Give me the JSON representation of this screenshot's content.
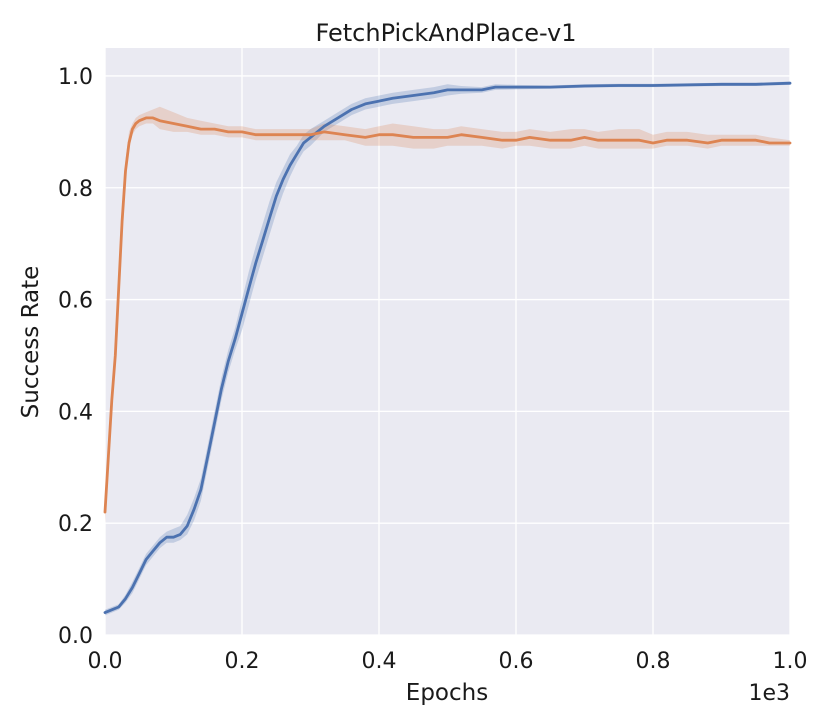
{
  "chart_data": {
    "type": "line",
    "title": "FetchPickAndPlace-v1",
    "xlabel": "Epochs",
    "ylabel": "Success Rate",
    "x_offset_label": "1e3",
    "xlim": [
      0.0,
      1.0
    ],
    "ylim": [
      0.0,
      1.05
    ],
    "xticks": [
      "0.0",
      "0.2",
      "0.4",
      "0.6",
      "0.8",
      "1.0"
    ],
    "yticks": [
      "0.0",
      "0.2",
      "0.4",
      "0.6",
      "0.8",
      "1.0"
    ],
    "grid": true,
    "legend": "none",
    "background": "#eaeaf2",
    "series": [
      {
        "color": "#4c72b0",
        "band_color": "#4c72b0",
        "x": [
          0.0,
          0.01,
          0.02,
          0.03,
          0.04,
          0.05,
          0.06,
          0.07,
          0.08,
          0.09,
          0.1,
          0.11,
          0.12,
          0.13,
          0.14,
          0.15,
          0.16,
          0.17,
          0.18,
          0.19,
          0.2,
          0.21,
          0.22,
          0.23,
          0.24,
          0.25,
          0.26,
          0.27,
          0.28,
          0.29,
          0.3,
          0.32,
          0.34,
          0.36,
          0.38,
          0.4,
          0.42,
          0.45,
          0.48,
          0.5,
          0.52,
          0.55,
          0.57,
          0.6,
          0.65,
          0.7,
          0.75,
          0.8,
          0.85,
          0.9,
          0.95,
          1.0
        ],
        "mean": [
          0.04,
          0.045,
          0.05,
          0.065,
          0.085,
          0.11,
          0.135,
          0.15,
          0.165,
          0.175,
          0.175,
          0.18,
          0.195,
          0.225,
          0.26,
          0.32,
          0.38,
          0.44,
          0.49,
          0.53,
          0.575,
          0.62,
          0.665,
          0.705,
          0.745,
          0.785,
          0.815,
          0.84,
          0.86,
          0.88,
          0.89,
          0.91,
          0.925,
          0.94,
          0.95,
          0.955,
          0.96,
          0.965,
          0.97,
          0.975,
          0.975,
          0.975,
          0.98,
          0.98,
          0.98,
          0.982,
          0.983,
          0.983,
          0.984,
          0.985,
          0.985,
          0.987
        ],
        "lower": [
          0.035,
          0.04,
          0.045,
          0.058,
          0.075,
          0.1,
          0.125,
          0.14,
          0.155,
          0.165,
          0.165,
          0.17,
          0.18,
          0.205,
          0.24,
          0.3,
          0.36,
          0.42,
          0.47,
          0.51,
          0.545,
          0.59,
          0.635,
          0.675,
          0.715,
          0.755,
          0.79,
          0.82,
          0.845,
          0.865,
          0.875,
          0.9,
          0.915,
          0.93,
          0.94,
          0.945,
          0.95,
          0.955,
          0.96,
          0.965,
          0.968,
          0.97,
          0.975,
          0.976,
          0.977,
          0.979,
          0.98,
          0.98,
          0.981,
          0.982,
          0.982,
          0.984
        ],
        "upper": [
          0.045,
          0.05,
          0.055,
          0.072,
          0.095,
          0.12,
          0.145,
          0.16,
          0.175,
          0.185,
          0.19,
          0.195,
          0.215,
          0.245,
          0.28,
          0.34,
          0.4,
          0.46,
          0.51,
          0.55,
          0.6,
          0.65,
          0.695,
          0.735,
          0.775,
          0.81,
          0.835,
          0.86,
          0.875,
          0.895,
          0.905,
          0.92,
          0.935,
          0.95,
          0.96,
          0.965,
          0.97,
          0.975,
          0.98,
          0.985,
          0.982,
          0.98,
          0.985,
          0.984,
          0.983,
          0.985,
          0.986,
          0.986,
          0.987,
          0.988,
          0.988,
          0.99
        ]
      },
      {
        "color": "#dd8452",
        "band_color": "#dd8452",
        "x": [
          0.0,
          0.005,
          0.01,
          0.015,
          0.02,
          0.025,
          0.03,
          0.035,
          0.04,
          0.045,
          0.05,
          0.06,
          0.07,
          0.08,
          0.1,
          0.12,
          0.14,
          0.16,
          0.18,
          0.2,
          0.22,
          0.25,
          0.28,
          0.3,
          0.32,
          0.35,
          0.38,
          0.4,
          0.42,
          0.45,
          0.48,
          0.5,
          0.52,
          0.55,
          0.58,
          0.6,
          0.62,
          0.65,
          0.68,
          0.7,
          0.72,
          0.75,
          0.78,
          0.8,
          0.82,
          0.85,
          0.88,
          0.9,
          0.92,
          0.95,
          0.97,
          1.0
        ],
        "mean": [
          0.22,
          0.32,
          0.42,
          0.5,
          0.62,
          0.74,
          0.83,
          0.88,
          0.905,
          0.915,
          0.92,
          0.925,
          0.925,
          0.92,
          0.915,
          0.91,
          0.905,
          0.905,
          0.9,
          0.9,
          0.895,
          0.895,
          0.895,
          0.895,
          0.9,
          0.895,
          0.89,
          0.895,
          0.895,
          0.89,
          0.89,
          0.89,
          0.895,
          0.89,
          0.885,
          0.885,
          0.89,
          0.885,
          0.885,
          0.89,
          0.885,
          0.885,
          0.885,
          0.88,
          0.885,
          0.885,
          0.88,
          0.885,
          0.885,
          0.885,
          0.88,
          0.88
        ],
        "lower": [
          0.2,
          0.3,
          0.4,
          0.48,
          0.6,
          0.72,
          0.81,
          0.87,
          0.895,
          0.905,
          0.91,
          0.915,
          0.915,
          0.905,
          0.9,
          0.9,
          0.895,
          0.895,
          0.89,
          0.89,
          0.885,
          0.885,
          0.885,
          0.885,
          0.885,
          0.885,
          0.875,
          0.875,
          0.875,
          0.87,
          0.87,
          0.875,
          0.875,
          0.875,
          0.87,
          0.875,
          0.875,
          0.87,
          0.87,
          0.875,
          0.87,
          0.87,
          0.87,
          0.87,
          0.875,
          0.875,
          0.87,
          0.875,
          0.875,
          0.875,
          0.875,
          0.875
        ],
        "upper": [
          0.24,
          0.34,
          0.44,
          0.52,
          0.64,
          0.76,
          0.85,
          0.9,
          0.915,
          0.925,
          0.93,
          0.935,
          0.94,
          0.945,
          0.935,
          0.925,
          0.92,
          0.915,
          0.91,
          0.91,
          0.905,
          0.905,
          0.905,
          0.905,
          0.915,
          0.91,
          0.905,
          0.91,
          0.915,
          0.91,
          0.905,
          0.905,
          0.91,
          0.905,
          0.9,
          0.9,
          0.905,
          0.9,
          0.905,
          0.905,
          0.9,
          0.905,
          0.905,
          0.895,
          0.9,
          0.9,
          0.895,
          0.895,
          0.895,
          0.895,
          0.89,
          0.885
        ]
      }
    ]
  }
}
